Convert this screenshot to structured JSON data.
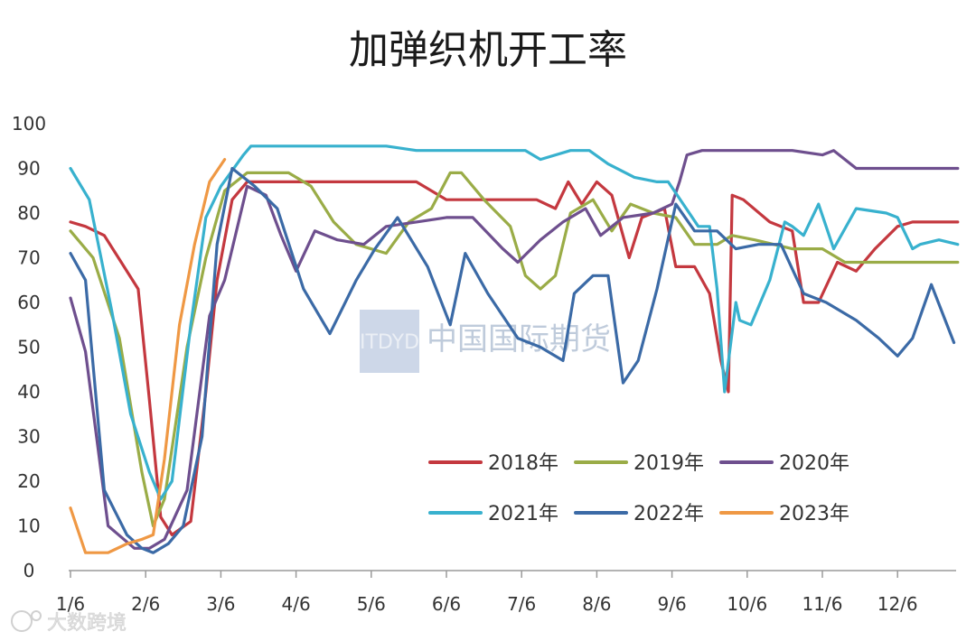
{
  "chart_data": {
    "type": "line",
    "title": "加弹织机开工率",
    "xlabel": "",
    "ylabel": "",
    "xlim": [
      0,
      11.8
    ],
    "ylim": [
      0,
      100
    ],
    "y_ticks": [
      0,
      10,
      20,
      30,
      40,
      50,
      60,
      70,
      80,
      90,
      100
    ],
    "x_ticks": [
      {
        "x": 0,
        "label": "1/6"
      },
      {
        "x": 1,
        "label": "2/6"
      },
      {
        "x": 2,
        "label": "3/6"
      },
      {
        "x": 3,
        "label": "4/6"
      },
      {
        "x": 4,
        "label": "5/6"
      },
      {
        "x": 5,
        "label": "6/6"
      },
      {
        "x": 6,
        "label": "7/6"
      },
      {
        "x": 7,
        "label": "8/6"
      },
      {
        "x": 8,
        "label": "9/6"
      },
      {
        "x": 9,
        "label": "10/6"
      },
      {
        "x": 10,
        "label": "11/6"
      },
      {
        "x": 11,
        "label": "12/6"
      }
    ],
    "grid": false,
    "legend_position": "bottom-right",
    "series": [
      {
        "name": "2018年",
        "color": "#c4383f",
        "points": [
          [
            0,
            78
          ],
          [
            0.2,
            77
          ],
          [
            0.45,
            75
          ],
          [
            0.9,
            63
          ],
          [
            1.05,
            38
          ],
          [
            1.2,
            12
          ],
          [
            1.35,
            8
          ],
          [
            1.6,
            11
          ],
          [
            1.8,
            40
          ],
          [
            1.95,
            65
          ],
          [
            2.15,
            83
          ],
          [
            2.35,
            87
          ],
          [
            2.6,
            87
          ],
          [
            3.5,
            87
          ],
          [
            4.6,
            87
          ],
          [
            5,
            83
          ],
          [
            5.5,
            83
          ],
          [
            6.2,
            83
          ],
          [
            6.45,
            81
          ],
          [
            6.62,
            87
          ],
          [
            6.8,
            82
          ],
          [
            7.0,
            87
          ],
          [
            7.2,
            84
          ],
          [
            7.43,
            70
          ],
          [
            7.6,
            79
          ],
          [
            7.9,
            81
          ],
          [
            8.05,
            68
          ],
          [
            8.3,
            68
          ],
          [
            8.5,
            62
          ],
          [
            8.65,
            47
          ],
          [
            8.75,
            40
          ],
          [
            8.8,
            84
          ],
          [
            8.95,
            83
          ],
          [
            9.3,
            78
          ],
          [
            9.6,
            76
          ],
          [
            9.75,
            60
          ],
          [
            9.95,
            60
          ],
          [
            10.2,
            69
          ],
          [
            10.45,
            67
          ],
          [
            10.7,
            72
          ],
          [
            11.0,
            77
          ],
          [
            11.2,
            78
          ],
          [
            11.8,
            78
          ]
        ]
      },
      {
        "name": "2019年",
        "color": "#9aac47",
        "points": [
          [
            0,
            76
          ],
          [
            0.3,
            70
          ],
          [
            0.65,
            52
          ],
          [
            0.95,
            22
          ],
          [
            1.1,
            10
          ],
          [
            1.25,
            16
          ],
          [
            1.55,
            50
          ],
          [
            1.8,
            70
          ],
          [
            2.05,
            85
          ],
          [
            2.35,
            89
          ],
          [
            2.9,
            89
          ],
          [
            3.2,
            86
          ],
          [
            3.5,
            78
          ],
          [
            3.8,
            73
          ],
          [
            4.2,
            71
          ],
          [
            4.5,
            78
          ],
          [
            4.8,
            81
          ],
          [
            5.05,
            89
          ],
          [
            5.2,
            89
          ],
          [
            5.5,
            83
          ],
          [
            5.85,
            77
          ],
          [
            6.05,
            66
          ],
          [
            6.25,
            63
          ],
          [
            6.45,
            66
          ],
          [
            6.65,
            80
          ],
          [
            6.95,
            83
          ],
          [
            7.2,
            76
          ],
          [
            7.45,
            82
          ],
          [
            7.75,
            80
          ],
          [
            8.05,
            79
          ],
          [
            8.3,
            73
          ],
          [
            8.6,
            73
          ],
          [
            8.8,
            75
          ],
          [
            9.1,
            74
          ],
          [
            9.6,
            72
          ],
          [
            10.0,
            72
          ],
          [
            10.3,
            69
          ],
          [
            10.6,
            69
          ],
          [
            11.8,
            69
          ]
        ]
      },
      {
        "name": "2020年",
        "color": "#6e4f8e",
        "points": [
          [
            0,
            61
          ],
          [
            0.2,
            49
          ],
          [
            0.5,
            10
          ],
          [
            0.85,
            5
          ],
          [
            1.05,
            5
          ],
          [
            1.25,
            7
          ],
          [
            1.55,
            18
          ],
          [
            1.85,
            57
          ],
          [
            2.05,
            65
          ],
          [
            2.35,
            86
          ],
          [
            2.6,
            84
          ],
          [
            2.8,
            75
          ],
          [
            3.0,
            67
          ],
          [
            3.25,
            76
          ],
          [
            3.55,
            74
          ],
          [
            3.9,
            73
          ],
          [
            4.2,
            77
          ],
          [
            4.6,
            78
          ],
          [
            5.0,
            79
          ],
          [
            5.35,
            79
          ],
          [
            5.75,
            72
          ],
          [
            5.95,
            69
          ],
          [
            6.25,
            74
          ],
          [
            6.55,
            78
          ],
          [
            6.85,
            81
          ],
          [
            7.05,
            75
          ],
          [
            7.35,
            79
          ],
          [
            7.75,
            80
          ],
          [
            8.0,
            82
          ],
          [
            8.1,
            87
          ],
          [
            8.2,
            93
          ],
          [
            8.4,
            94
          ],
          [
            8.9,
            94
          ],
          [
            9.6,
            94
          ],
          [
            10.0,
            93
          ],
          [
            10.15,
            94
          ],
          [
            10.45,
            90
          ],
          [
            11.0,
            90
          ],
          [
            11.8,
            90
          ]
        ]
      },
      {
        "name": "2021年",
        "color": "#38b1ce",
        "points": [
          [
            0,
            90
          ],
          [
            0.25,
            83
          ],
          [
            0.55,
            58
          ],
          [
            0.8,
            35
          ],
          [
            1.05,
            22
          ],
          [
            1.2,
            16
          ],
          [
            1.35,
            20
          ],
          [
            1.6,
            55
          ],
          [
            1.8,
            79
          ],
          [
            2.0,
            86
          ],
          [
            2.3,
            93
          ],
          [
            2.4,
            95
          ],
          [
            3.5,
            95
          ],
          [
            4.2,
            95
          ],
          [
            4.6,
            94
          ],
          [
            5.5,
            94
          ],
          [
            6.05,
            94
          ],
          [
            6.25,
            92
          ],
          [
            6.65,
            94
          ],
          [
            6.9,
            94
          ],
          [
            7.15,
            91
          ],
          [
            7.5,
            88
          ],
          [
            7.8,
            87
          ],
          [
            7.95,
            87
          ],
          [
            8.15,
            82
          ],
          [
            8.35,
            77
          ],
          [
            8.5,
            77
          ],
          [
            8.6,
            63
          ],
          [
            8.7,
            40
          ],
          [
            8.85,
            60
          ],
          [
            8.9,
            56
          ],
          [
            9.05,
            55
          ],
          [
            9.3,
            65
          ],
          [
            9.5,
            78
          ],
          [
            9.6,
            77
          ],
          [
            9.75,
            75
          ],
          [
            9.95,
            82
          ],
          [
            10.15,
            72
          ],
          [
            10.45,
            81
          ],
          [
            10.85,
            80
          ],
          [
            11.0,
            79
          ],
          [
            11.2,
            72
          ],
          [
            11.3,
            73
          ],
          [
            11.55,
            74
          ],
          [
            11.8,
            73
          ]
        ]
      },
      {
        "name": "2022年",
        "color": "#3b6aa6",
        "points": [
          [
            0,
            71
          ],
          [
            0.2,
            65
          ],
          [
            0.45,
            18
          ],
          [
            0.75,
            8
          ],
          [
            0.95,
            5
          ],
          [
            1.1,
            4
          ],
          [
            1.3,
            6
          ],
          [
            1.5,
            10
          ],
          [
            1.75,
            30
          ],
          [
            1.95,
            73
          ],
          [
            2.15,
            90
          ],
          [
            2.45,
            86
          ],
          [
            2.75,
            81
          ],
          [
            3.1,
            63
          ],
          [
            3.45,
            53
          ],
          [
            3.8,
            65
          ],
          [
            4.05,
            72
          ],
          [
            4.35,
            79
          ],
          [
            4.75,
            68
          ],
          [
            5.05,
            55
          ],
          [
            5.25,
            71
          ],
          [
            5.55,
            62
          ],
          [
            5.95,
            52
          ],
          [
            6.25,
            50
          ],
          [
            6.55,
            47
          ],
          [
            6.7,
            62
          ],
          [
            6.95,
            66
          ],
          [
            7.15,
            66
          ],
          [
            7.35,
            42
          ],
          [
            7.55,
            47
          ],
          [
            7.8,
            63
          ],
          [
            8.05,
            82
          ],
          [
            8.3,
            76
          ],
          [
            8.6,
            76
          ],
          [
            8.85,
            72
          ],
          [
            9.15,
            73
          ],
          [
            9.45,
            73
          ],
          [
            9.75,
            62
          ],
          [
            10.05,
            60
          ],
          [
            10.45,
            56
          ],
          [
            10.75,
            52
          ],
          [
            11.0,
            48
          ],
          [
            11.2,
            52
          ],
          [
            11.45,
            64
          ],
          [
            11.75,
            51
          ]
        ]
      },
      {
        "name": "2023年",
        "color": "#ef9844",
        "points": [
          [
            0,
            14
          ],
          [
            0.2,
            4
          ],
          [
            0.5,
            4
          ],
          [
            0.75,
            6
          ],
          [
            0.95,
            7
          ],
          [
            1.1,
            8
          ],
          [
            1.25,
            25
          ],
          [
            1.45,
            55
          ],
          [
            1.65,
            73
          ],
          [
            1.85,
            87
          ],
          [
            2.05,
            92
          ]
        ]
      }
    ]
  },
  "watermark": {
    "logo_text": "ITDYD",
    "text": "中国国际期货"
  },
  "footer_watermark": {
    "text": "大数跨境"
  }
}
